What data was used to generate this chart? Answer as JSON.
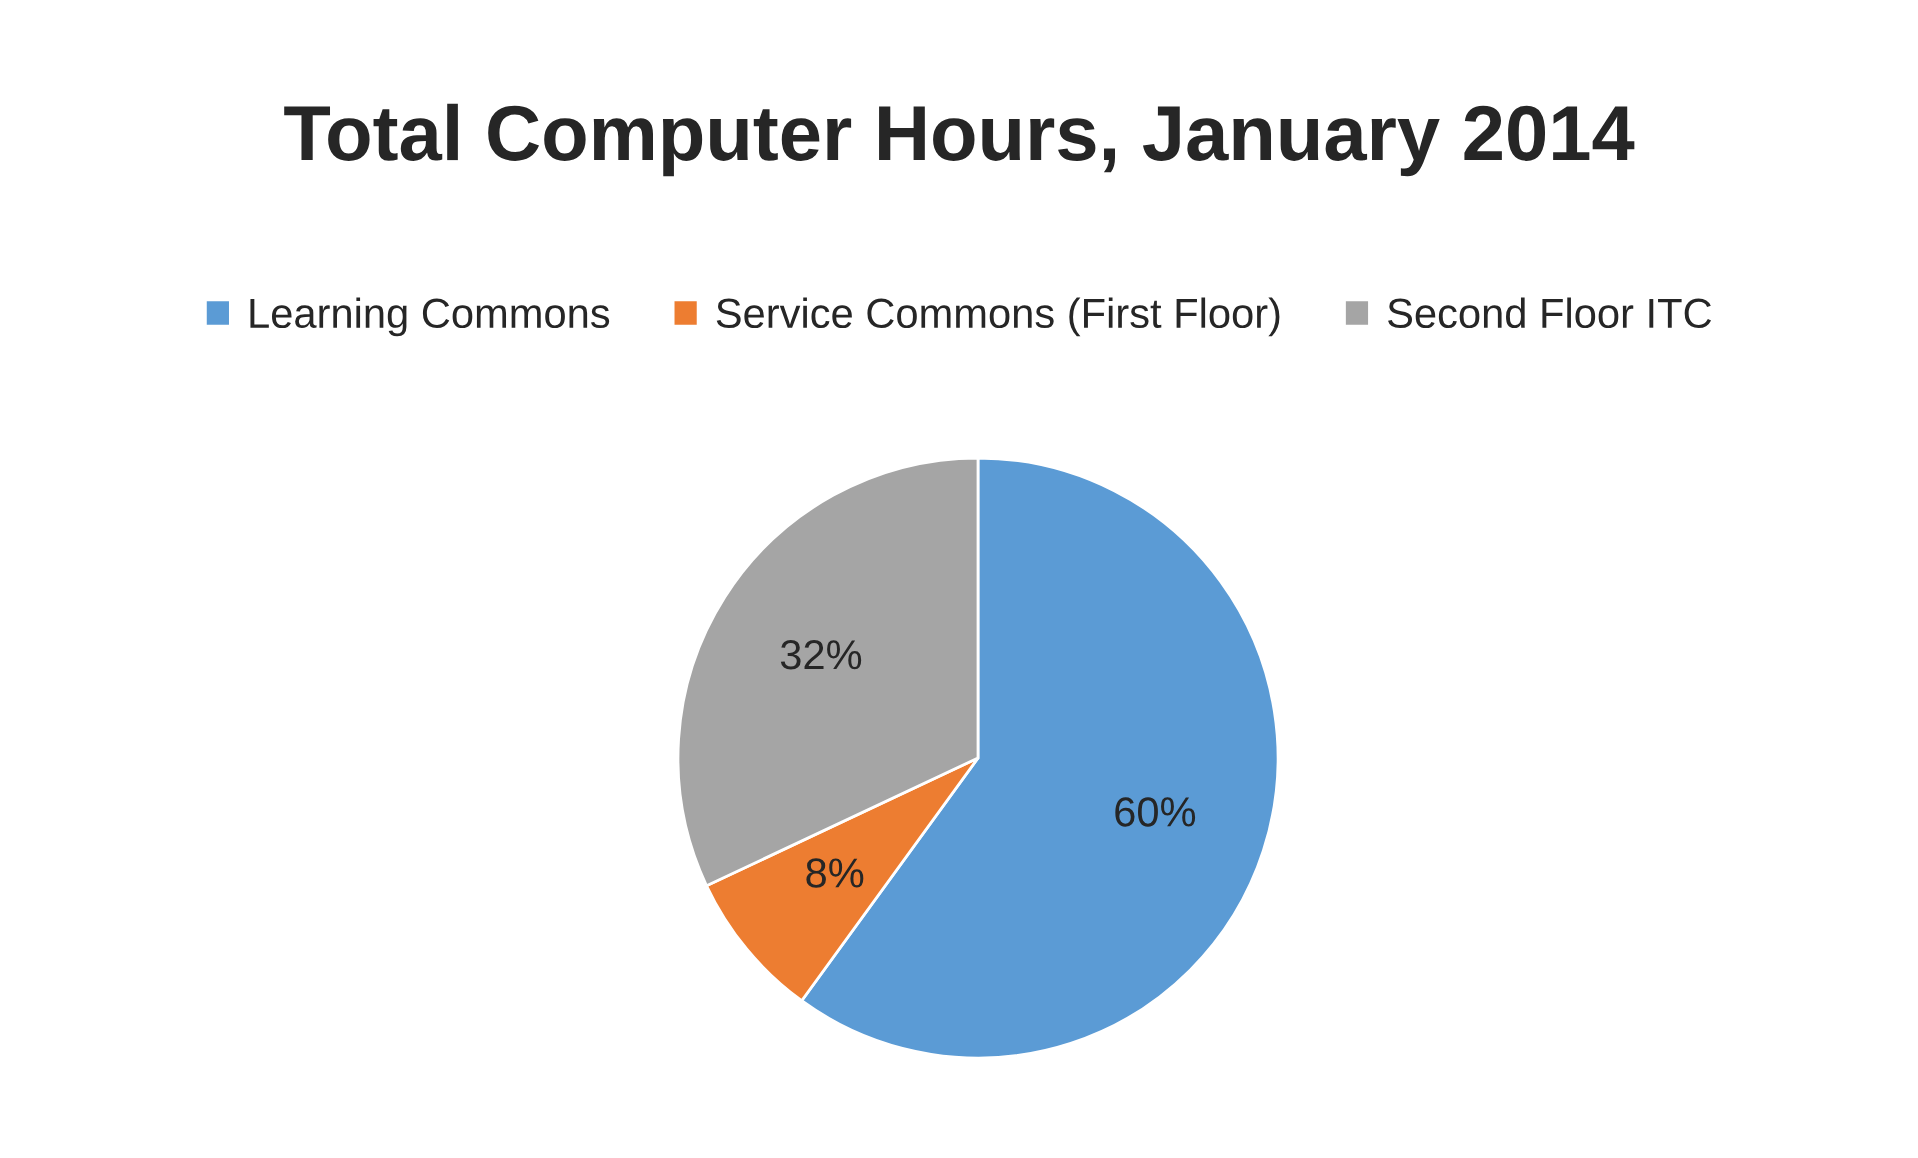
{
  "chart_data": {
    "type": "pie",
    "title": "Total Computer Hours, January 2014",
    "categories": [
      "Learning Commons",
      "Service Commons (First Floor)",
      "Second Floor ITC"
    ],
    "values": [
      60,
      8,
      32
    ],
    "colors": [
      "#5b9bd5",
      "#ed7d31",
      "#a5a5a5"
    ],
    "value_labels": [
      "60%",
      "8%",
      "32%"
    ],
    "legend": "top"
  }
}
